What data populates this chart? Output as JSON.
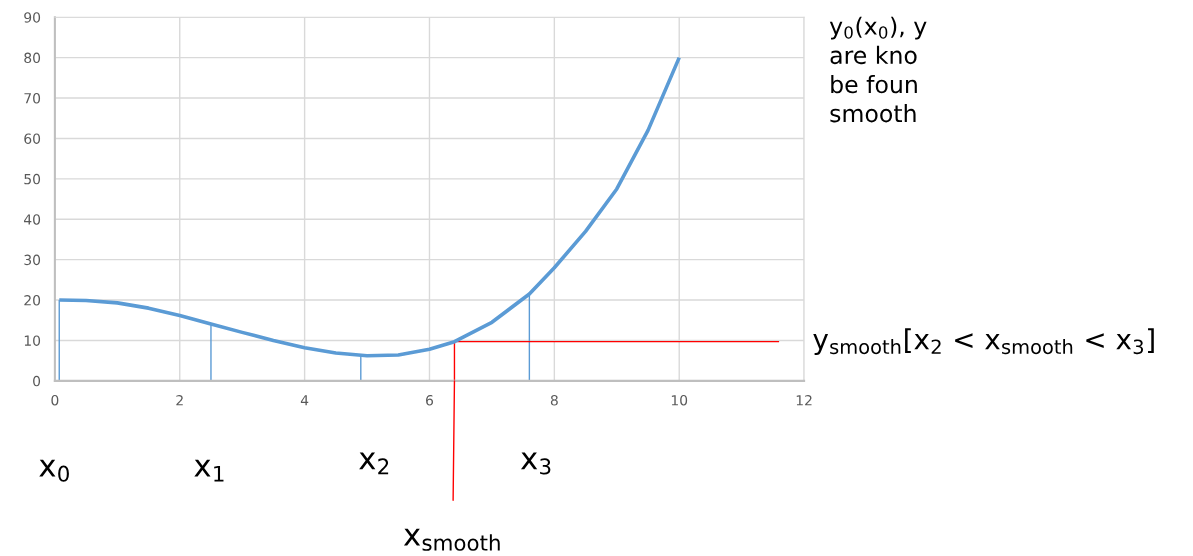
{
  "chart_data": {
    "type": "line",
    "series": [
      {
        "color": "#5b9bd5",
        "x": [
          0.07,
          0.5,
          1,
          1.5,
          2,
          2.5,
          3,
          3.5,
          4,
          4.5,
          5,
          5.5,
          6,
          6.4,
          7,
          7.6,
          8,
          8.5,
          9,
          9.5,
          10
        ],
        "values": [
          20,
          19.9,
          19.3,
          18,
          16.2,
          14.1,
          12,
          10,
          8.2,
          6.9,
          6.2,
          6.4,
          7.8,
          9.7,
          14.5,
          21.5,
          28,
          37,
          47.5,
          62,
          80
        ]
      },
      {
        "color": "#5b9bd5",
        "x": [
          0.07,
          0.07
        ],
        "values": [
          0,
          20
        ]
      },
      {
        "color": "#5b9bd5",
        "x": [
          2.5,
          2.5
        ],
        "values": [
          0,
          14.1
        ]
      },
      {
        "color": "#5b9bd5",
        "x": [
          4.9,
          4.9
        ],
        "values": [
          0,
          6.2
        ]
      },
      {
        "color": "#5b9bd5",
        "x": [
          7.6,
          7.6
        ],
        "values": [
          0,
          21.5
        ]
      },
      {
        "color": "#ff0000",
        "x": [
          6.4,
          6.4,
          11.6
        ],
        "values": [
          0,
          9.7,
          9.7
        ]
      }
    ],
    "xlim": [
      0,
      12
    ],
    "xticks": [
      0,
      2,
      4,
      6,
      8,
      10,
      12
    ],
    "ylim": [
      0,
      90
    ],
    "yticks": [
      0,
      10,
      20,
      30,
      40,
      50,
      60,
      70,
      80,
      90
    ],
    "grid": true,
    "marker": "none",
    "line_style": "solid",
    "annotations": [
      "x$_{0}$",
      "x$_{1}$",
      "x$_{2}$",
      "x$_{3}$",
      "x$_{smooth}$",
      "y$_{smooth}$[x$_{2}$ < x$_{smooth}$ < x$_{3}$]",
      "y$_{0}$(x$_{0}$), y\nare kno\nbe foun\nsmooth"
    ]
  }
}
